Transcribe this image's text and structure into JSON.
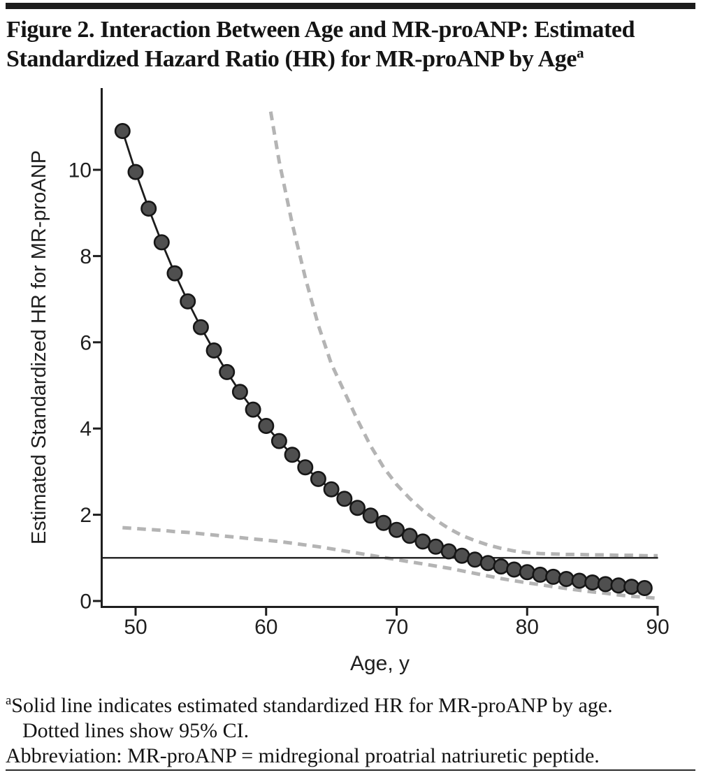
{
  "figure": {
    "title_line1": "Figure 2. Interaction Between Age and MR-proANP: Estimated",
    "title_line2": "Standardized Hazard Ratio (HR) for MR-proANP by Age",
    "title_superscript": "a"
  },
  "footnotes": {
    "superscript": "a",
    "line1": "Solid line indicates estimated standardized HR for MR-proANP by age.",
    "line2": "Dotted lines show 95% CI.",
    "line3": "Abbreviation: MR-proANP = midregional proatrial natriuretic peptide."
  },
  "chart_data": {
    "type": "line",
    "title": "",
    "xlabel": "Age, y",
    "ylabel": "Estimated Standardized HR for MR-proANP",
    "xlim": [
      47.4,
      90.5
    ],
    "ylim": [
      0,
      11.9
    ],
    "x_ticks": [
      50,
      60,
      70,
      80,
      90
    ],
    "y_ticks": [
      0,
      2,
      4,
      6,
      8,
      10
    ],
    "grid": false,
    "legend": "none",
    "axis_color": "#1e1e1e",
    "reference_line": {
      "y": 1,
      "color": "#2a2a2a"
    },
    "series": [
      {
        "name": "estimated-standardized-hr",
        "style": "solid-markers",
        "color": "#1c1c1c",
        "marker_fill": "#4f4f4f",
        "marker_stroke": "#161616",
        "x": [
          49,
          50,
          51,
          52,
          53,
          54,
          55,
          56,
          57,
          58,
          59,
          60,
          61,
          62,
          63,
          64,
          65,
          66,
          67,
          68,
          69,
          70,
          71,
          72,
          73,
          74,
          75,
          76,
          77,
          78,
          79,
          80,
          81,
          82,
          83,
          84,
          85,
          86,
          87,
          88,
          89
        ],
        "y": [
          10.9,
          9.95,
          9.1,
          8.32,
          7.6,
          6.95,
          6.35,
          5.81,
          5.31,
          4.85,
          4.44,
          4.06,
          3.71,
          3.39,
          3.1,
          2.83,
          2.59,
          2.37,
          2.16,
          1.98,
          1.81,
          1.65,
          1.51,
          1.38,
          1.26,
          1.15,
          1.05,
          0.96,
          0.88,
          0.8,
          0.73,
          0.67,
          0.61,
          0.56,
          0.51,
          0.47,
          0.43,
          0.39,
          0.36,
          0.33,
          0.3
        ]
      },
      {
        "name": "upper-95ci",
        "style": "dashed",
        "color": "#b4b4b4",
        "x": [
          60.35,
          61,
          62,
          63,
          64,
          65,
          66,
          67,
          68,
          69,
          70,
          71,
          72,
          73,
          74,
          75,
          76,
          77,
          78,
          79,
          80,
          81,
          82,
          83,
          84,
          85,
          86,
          87,
          88,
          89,
          90
        ],
        "y": [
          11.35,
          10.2,
          8.75,
          7.5,
          6.4,
          5.5,
          4.85,
          4.2,
          3.6,
          3.1,
          2.7,
          2.38,
          2.1,
          1.88,
          1.68,
          1.52,
          1.4,
          1.3,
          1.22,
          1.16,
          1.12,
          1.1,
          1.09,
          1.08,
          1.08,
          1.07,
          1.07,
          1.06,
          1.06,
          1.05,
          1.05
        ]
      },
      {
        "name": "lower-95ci",
        "style": "dashed",
        "color": "#b4b4b4",
        "x": [
          49,
          50,
          51,
          52,
          53,
          54,
          55,
          56,
          57,
          58,
          59,
          60,
          61,
          62,
          63,
          64,
          65,
          66,
          67,
          68,
          69,
          70,
          71,
          72,
          73,
          74,
          75,
          76,
          77,
          78,
          79,
          80,
          81,
          82,
          83,
          84,
          85,
          86,
          87,
          88,
          89,
          90
        ],
        "y": [
          1.7,
          1.68,
          1.66,
          1.64,
          1.61,
          1.59,
          1.56,
          1.53,
          1.5,
          1.47,
          1.44,
          1.41,
          1.38,
          1.34,
          1.3,
          1.26,
          1.21,
          1.16,
          1.11,
          1.06,
          1.01,
          0.96,
          0.91,
          0.86,
          0.81,
          0.76,
          0.7,
          0.64,
          0.58,
          0.52,
          0.47,
          0.42,
          0.38,
          0.33,
          0.29,
          0.25,
          0.21,
          0.18,
          0.14,
          0.11,
          0.09,
          0.06
        ]
      }
    ]
  }
}
